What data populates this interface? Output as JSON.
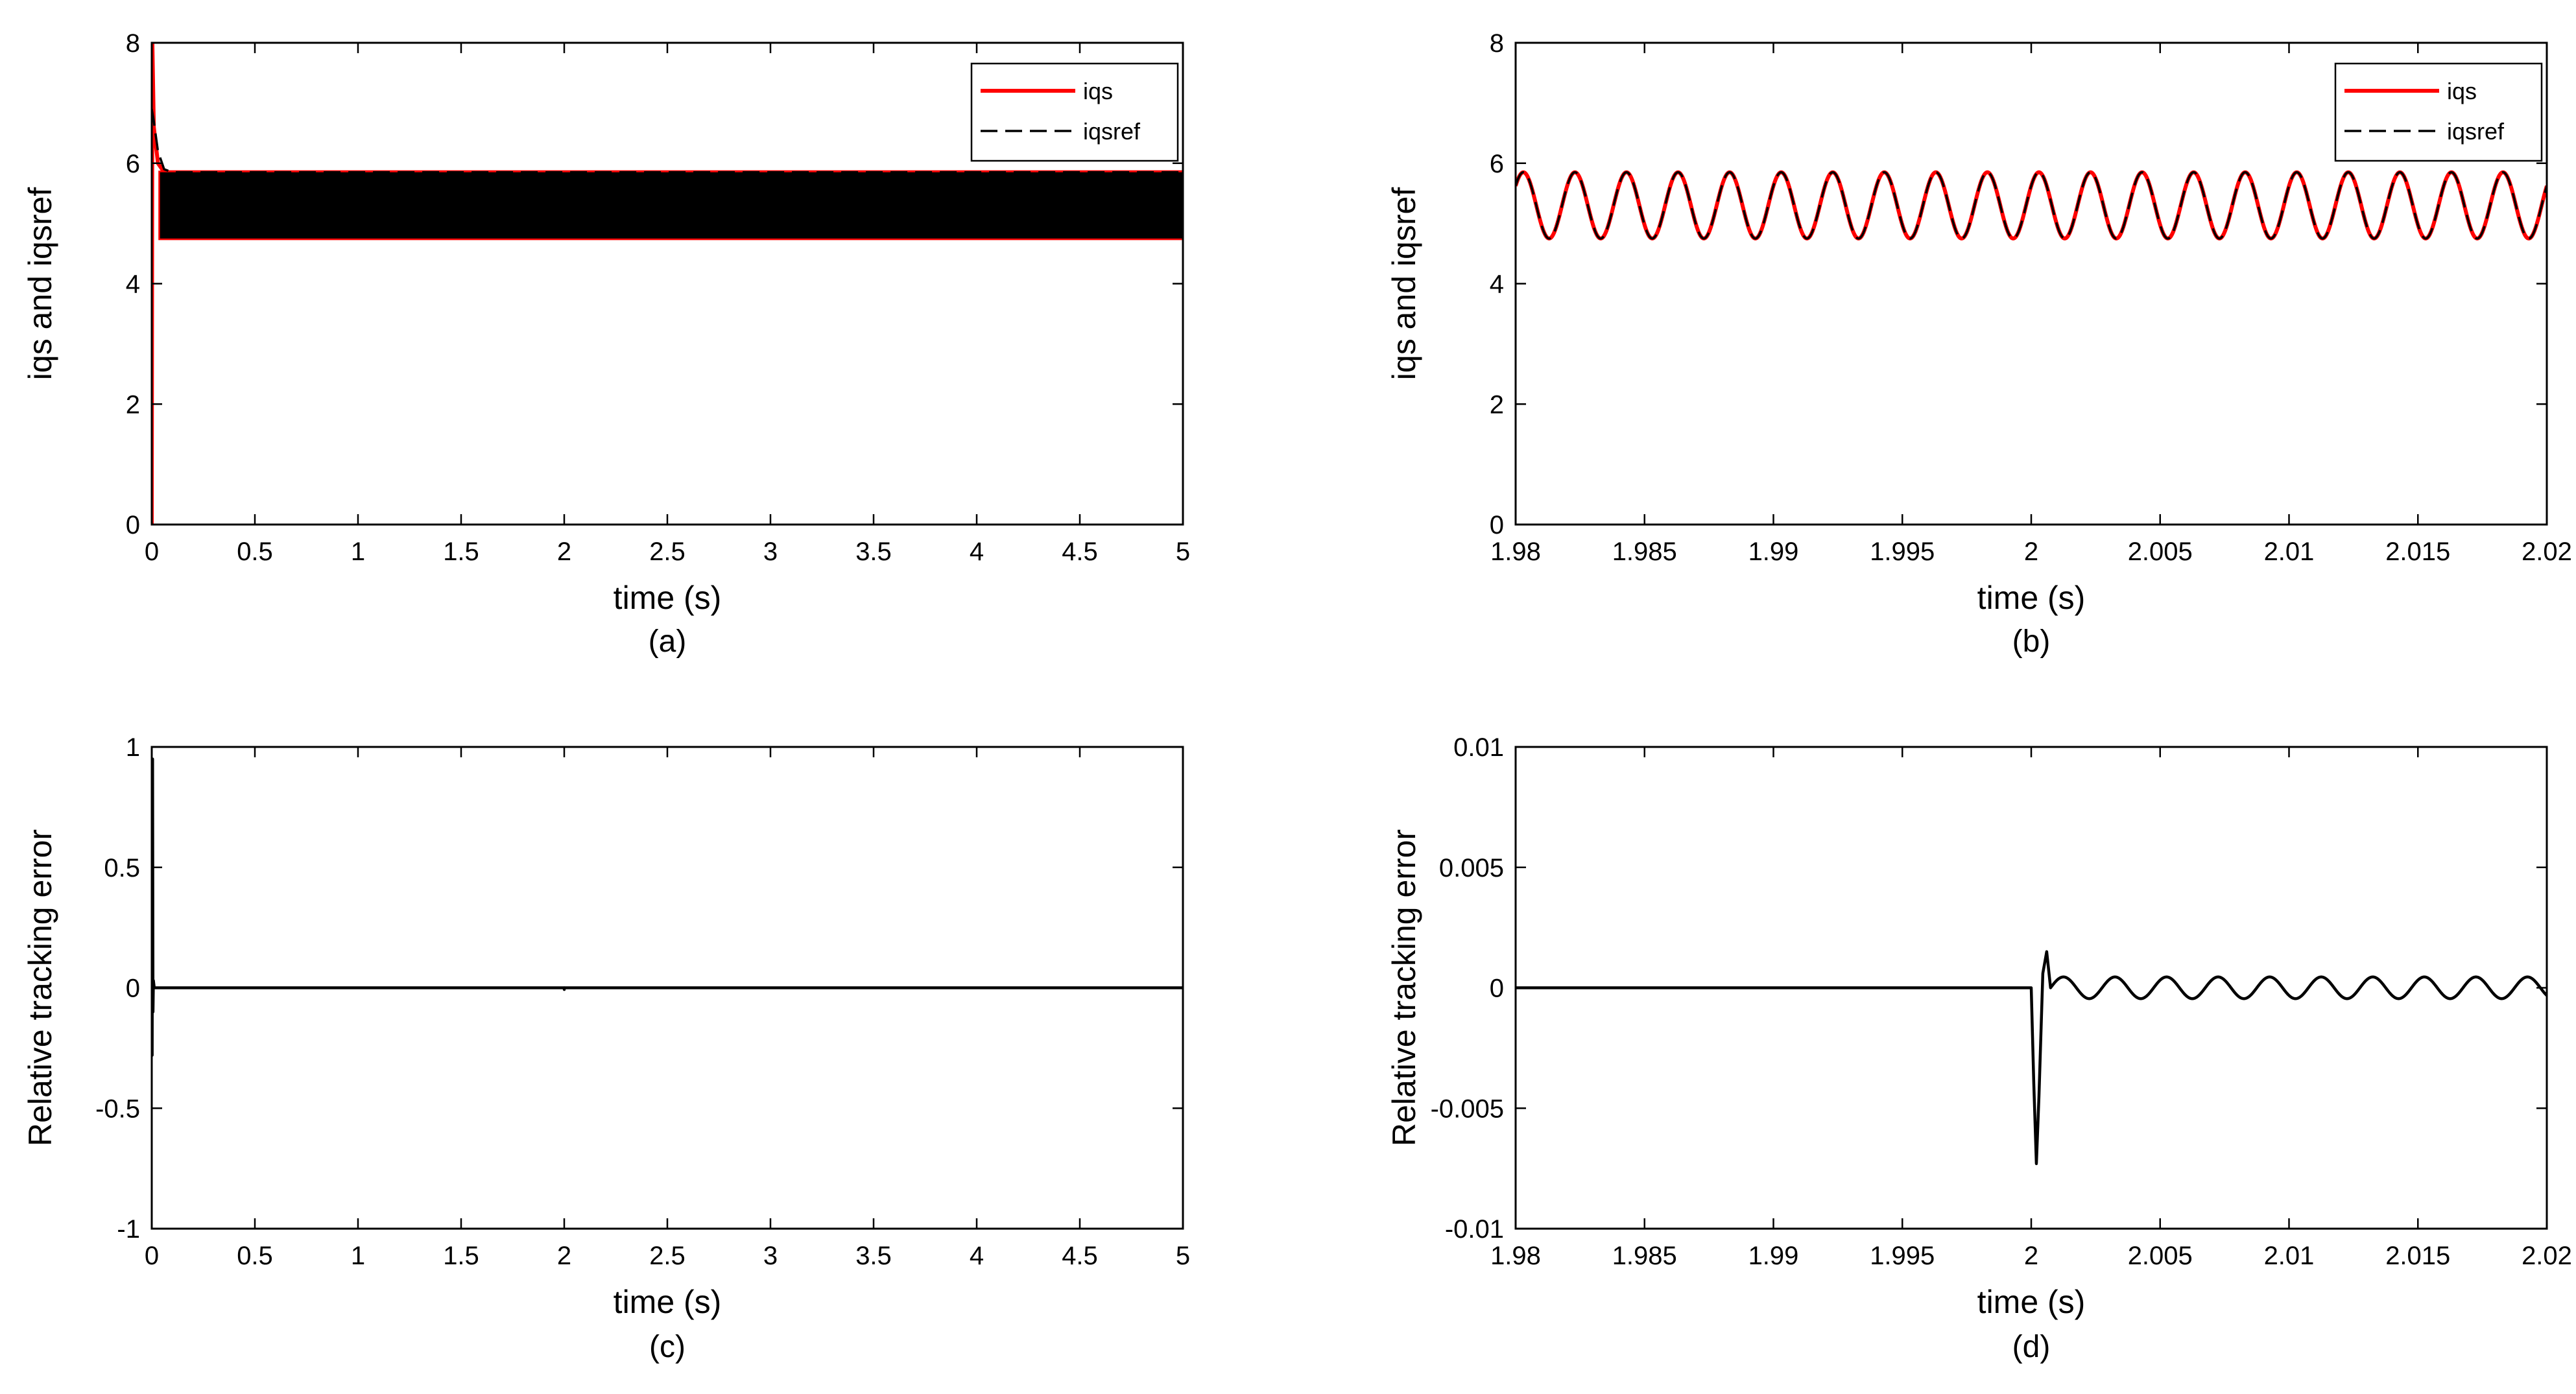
{
  "colors": {
    "iqs": "#ff0000",
    "iqsref": "#000000",
    "error": "#000000",
    "axes": "#000000",
    "background": "#ffffff"
  },
  "chart_data": [
    {
      "panel": "a",
      "type": "line",
      "caption": "(a)",
      "xlabel": "time (s)",
      "ylabel": "iqs and iqsref",
      "xlim": [
        0,
        5
      ],
      "ylim": [
        0,
        8
      ],
      "xticks": [
        0,
        0.5,
        1,
        1.5,
        2,
        2.5,
        3,
        3.5,
        4,
        4.5,
        5
      ],
      "yticks": [
        0,
        2,
        4,
        6,
        8
      ],
      "xtick_labels": [
        "0",
        "0.5",
        "1",
        "1.5",
        "2",
        "2.5",
        "3",
        "3.5",
        "4",
        "4.5",
        "5"
      ],
      "ytick_labels": [
        "0",
        "2",
        "4",
        "6",
        "8"
      ],
      "legend": {
        "position": "top-right",
        "entries": [
          "iqs",
          "iqsref"
        ]
      },
      "grid": false,
      "description_of_shape": "iqs spikes from 0 to 8 at t=0 then settles; both signals oscillate densely between about 4.75 and 5.85 over the full range",
      "series": [
        {
          "name": "iqs",
          "style": "solid-red",
          "x": [
            0,
            0.003,
            0.01,
            0.03,
            0.06,
            0.1,
            5
          ],
          "y": [
            0,
            8,
            6.6,
            6.0,
            5.85,
            5.85,
            5.85
          ],
          "band": {
            "from_x": 0.04,
            "to_x": 5,
            "low": 4.75,
            "high": 5.85
          }
        },
        {
          "name": "iqsref",
          "style": "dashed-black",
          "x": [
            0,
            0.01,
            0.03,
            0.06,
            0.1,
            5
          ],
          "y": [
            6.9,
            6.7,
            6.2,
            5.9,
            5.85,
            5.85
          ],
          "band": {
            "from_x": 0.04,
            "to_x": 5,
            "low": 4.75,
            "high": 5.85
          }
        }
      ]
    },
    {
      "panel": "b",
      "type": "line",
      "caption": "(b)",
      "xlabel": "time (s)",
      "ylabel": "iqs and iqsref",
      "xlim": [
        1.98,
        2.02
      ],
      "ylim": [
        0,
        8
      ],
      "xticks": [
        1.98,
        1.985,
        1.99,
        1.995,
        2,
        2.005,
        2.01,
        2.015,
        2.02
      ],
      "yticks": [
        0,
        2,
        4,
        6,
        8
      ],
      "xtick_labels": [
        "1.98",
        "1.985",
        "1.99",
        "1.995",
        "2",
        "2.005",
        "2.01",
        "2.015",
        "2.02"
      ],
      "ytick_labels": [
        "0",
        "2",
        "4",
        "6",
        "8"
      ],
      "legend": {
        "position": "top-right",
        "entries": [
          "iqs",
          "iqsref"
        ]
      },
      "grid": false,
      "series": [
        {
          "name": "iqs",
          "style": "solid-red",
          "sine": {
            "offset": 5.3,
            "amplitude": 0.55,
            "period": 0.002,
            "phase_at_xmin": 0.1
          }
        },
        {
          "name": "iqsref",
          "style": "dashed-black",
          "sine": {
            "offset": 5.3,
            "amplitude": 0.55,
            "period": 0.002,
            "phase_at_xmin": 0.1
          }
        }
      ]
    },
    {
      "panel": "c",
      "type": "line",
      "caption": "(c)",
      "xlabel": "time (s)",
      "ylabel": "Relative tracking error",
      "xlim": [
        0,
        5
      ],
      "ylim": [
        -1,
        1
      ],
      "xticks": [
        0,
        0.5,
        1,
        1.5,
        2,
        2.5,
        3,
        3.5,
        4,
        4.5,
        5
      ],
      "yticks": [
        -1,
        -0.5,
        0,
        0.5,
        1
      ],
      "xtick_labels": [
        "0",
        "0.5",
        "1",
        "1.5",
        "2",
        "2.5",
        "3",
        "3.5",
        "4",
        "4.5",
        "5"
      ],
      "ytick_labels": [
        "-1",
        "-0.5",
        "0",
        "0.5",
        "1"
      ],
      "grid": false,
      "series": [
        {
          "name": "",
          "style": "solid-black",
          "x": [
            0,
            0.002,
            0.004,
            0.006,
            0.008,
            0.012,
            0.02,
            2,
            2.0002,
            2.0004,
            5
          ],
          "y": [
            0,
            -0.28,
            0.95,
            -0.1,
            0.03,
            0,
            0,
            0,
            -0.007,
            0,
            0
          ]
        }
      ]
    },
    {
      "panel": "d",
      "type": "line",
      "caption": "(d)",
      "xlabel": "time (s)",
      "ylabel": "Relative tracking error",
      "xlim": [
        1.98,
        2.02
      ],
      "ylim": [
        -0.01,
        0.01
      ],
      "xticks": [
        1.98,
        1.985,
        1.99,
        1.995,
        2,
        2.005,
        2.01,
        2.015,
        2.02
      ],
      "yticks": [
        -0.01,
        -0.005,
        0,
        0.005,
        0.01
      ],
      "xtick_labels": [
        "1.98",
        "1.985",
        "1.99",
        "1.995",
        "2",
        "2.005",
        "2.01",
        "2.015",
        "2.02"
      ],
      "ytick_labels": [
        "-0.01",
        "-0.005",
        "0",
        "0.005",
        "0.01"
      ],
      "grid": false,
      "series": [
        {
          "name": "",
          "style": "solid-black",
          "x": [
            1.98,
            2.0,
            2.0001,
            2.0002,
            2.0003,
            2.00045,
            2.0006,
            2.00075
          ],
          "y": [
            0,
            0,
            -0.004,
            -0.0073,
            -0.0045,
            0.0006,
            0.0015,
            0.0
          ],
          "tail_oscillation": {
            "from_x": 2.00075,
            "to_x": 2.02,
            "amplitude": 0.00045,
            "period": 0.002
          }
        }
      ]
    }
  ]
}
